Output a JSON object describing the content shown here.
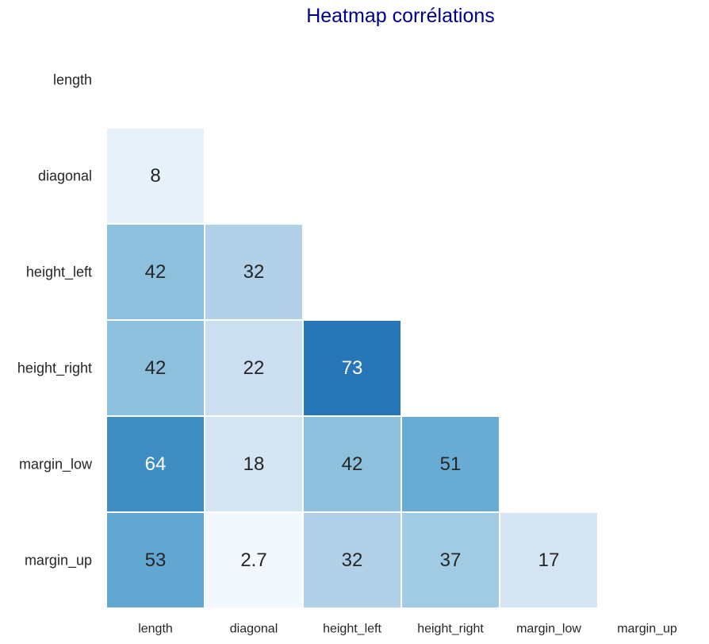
{
  "chart_data": {
    "type": "heatmap",
    "title": "Heatmap corrélations",
    "xlabel": "",
    "ylabel": "",
    "colormap": "Blues",
    "vmin": 0,
    "vmax": 100,
    "mask": "upper-triangle-and-diagonal",
    "row_labels": [
      "length",
      "diagonal",
      "height_left",
      "height_right",
      "margin_low",
      "margin_up"
    ],
    "col_labels": [
      "length",
      "diagonal",
      "height_left",
      "height_right",
      "margin_low",
      "margin_up"
    ],
    "cells": [
      {
        "row": 1,
        "col": 0,
        "value": 8,
        "label": "8"
      },
      {
        "row": 2,
        "col": 0,
        "value": 42,
        "label": "42"
      },
      {
        "row": 2,
        "col": 1,
        "value": 32,
        "label": "32"
      },
      {
        "row": 3,
        "col": 0,
        "value": 42,
        "label": "42"
      },
      {
        "row": 3,
        "col": 1,
        "value": 22,
        "label": "22"
      },
      {
        "row": 3,
        "col": 2,
        "value": 73,
        "label": "73"
      },
      {
        "row": 4,
        "col": 0,
        "value": 64,
        "label": "64"
      },
      {
        "row": 4,
        "col": 1,
        "value": 18,
        "label": "18"
      },
      {
        "row": 4,
        "col": 2,
        "value": 42,
        "label": "42"
      },
      {
        "row": 4,
        "col": 3,
        "value": 51,
        "label": "51"
      },
      {
        "row": 5,
        "col": 0,
        "value": 53,
        "label": "53"
      },
      {
        "row": 5,
        "col": 1,
        "value": 2.7,
        "label": "2.7"
      },
      {
        "row": 5,
        "col": 2,
        "value": 32,
        "label": "32"
      },
      {
        "row": 5,
        "col": 3,
        "value": 37,
        "label": "37"
      },
      {
        "row": 5,
        "col": 4,
        "value": 17,
        "label": "17"
      }
    ],
    "grid": false,
    "legend": "none"
  },
  "colors": {
    "title": "#00008b",
    "text_dark": "#262626",
    "text_light": "#ffffff",
    "cell_border": "#ffffff"
  }
}
